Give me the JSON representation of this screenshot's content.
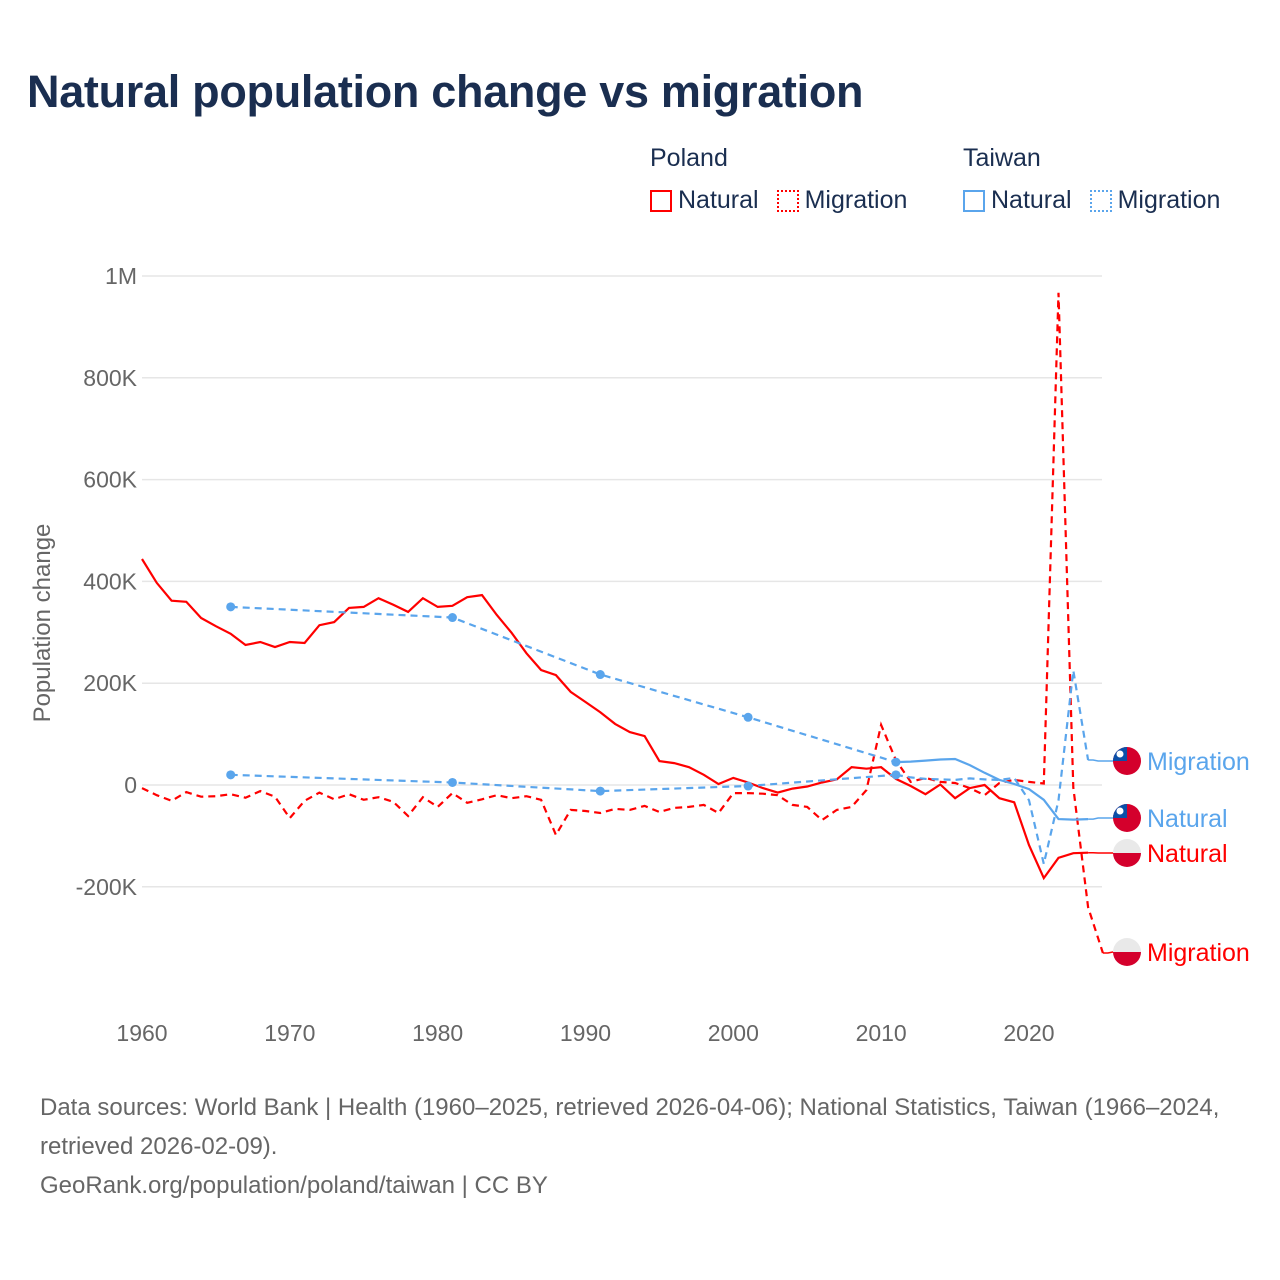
{
  "title": "Natural population change vs migration",
  "legend": {
    "groups": [
      {
        "name": "Poland",
        "color": "#ff0000",
        "items": [
          "Natural",
          "Migration"
        ]
      },
      {
        "name": "Taiwan",
        "color": "#5aa5ec",
        "items": [
          "Natural",
          "Migration"
        ]
      }
    ]
  },
  "footer": {
    "sources": "Data sources: World Bank | Health (1960–2025, retrieved 2026-04-06); National Statistics, Taiwan (1966–2024, retrieved 2026-02-09).",
    "credit": "GeoRank.org/population/poland/taiwan | CC BY"
  },
  "chart_data": {
    "type": "line",
    "title": "Natural population change vs migration",
    "ylabel": "Population change",
    "xlabel": "",
    "xlim": [
      1960,
      2025
    ],
    "ylim": [
      -400000,
      1000000
    ],
    "x_ticks": [
      1960,
      1970,
      1980,
      1990,
      2000,
      2010,
      2020
    ],
    "y_ticks": [
      {
        "value": 1000000,
        "label": "1M"
      },
      {
        "value": 800000,
        "label": "800K"
      },
      {
        "value": 600000,
        "label": "600K"
      },
      {
        "value": 400000,
        "label": "400K"
      },
      {
        "value": 200000,
        "label": "200K"
      },
      {
        "value": 0,
        "label": "0"
      },
      {
        "value": -200000,
        "label": "-200K"
      }
    ],
    "grid": true,
    "legend_position": "top-right",
    "series": [
      {
        "name": "Poland Natural",
        "country": "Poland",
        "label": "Natural",
        "color": "#ff0000",
        "style": "solid",
        "x": [
          1960,
          1961,
          1962,
          1963,
          1964,
          1965,
          1966,
          1967,
          1968,
          1969,
          1970,
          1971,
          1972,
          1973,
          1974,
          1975,
          1976,
          1977,
          1978,
          1979,
          1980,
          1981,
          1982,
          1983,
          1984,
          1985,
          1986,
          1987,
          1988,
          1989,
          1990,
          1991,
          1992,
          1993,
          1994,
          1995,
          1996,
          1997,
          1998,
          1999,
          2000,
          2001,
          2002,
          2003,
          2004,
          2005,
          2006,
          2007,
          2008,
          2009,
          2010,
          2011,
          2012,
          2013,
          2014,
          2015,
          2016,
          2017,
          2018,
          2019,
          2020,
          2021,
          2022,
          2023,
          2024
        ],
        "y": [
          444000,
          397000,
          362000,
          360000,
          328000,
          312000,
          297000,
          275000,
          281000,
          271000,
          281000,
          279000,
          314000,
          320000,
          348000,
          350000,
          367000,
          354000,
          340000,
          367000,
          350000,
          352000,
          369000,
          373000,
          334000,
          299000,
          259000,
          226000,
          216000,
          183000,
          163000,
          143000,
          120000,
          104000,
          96000,
          47000,
          43000,
          35000,
          20000,
          2000,
          14000,
          5000,
          -6000,
          -15000,
          -7000,
          -3000,
          5000,
          11000,
          35000,
          32000,
          35000,
          12000,
          -2000,
          -18000,
          1000,
          -26000,
          -6000,
          0,
          -26000,
          -34000,
          -118000,
          -183000,
          -143000,
          -134000,
          -133000
        ]
      },
      {
        "name": "Poland Migration",
        "country": "Poland",
        "label": "Migration",
        "color": "#ff0000",
        "style": "dashed",
        "x": [
          1960,
          1961,
          1962,
          1963,
          1964,
          1965,
          1966,
          1967,
          1968,
          1969,
          1970,
          1971,
          1972,
          1973,
          1974,
          1975,
          1976,
          1977,
          1978,
          1979,
          1980,
          1981,
          1982,
          1983,
          1984,
          1985,
          1986,
          1987,
          1988,
          1989,
          1990,
          1991,
          1992,
          1993,
          1994,
          1995,
          1996,
          1997,
          1998,
          1999,
          2000,
          2001,
          2002,
          2003,
          2004,
          2005,
          2006,
          2007,
          2008,
          2009,
          2010,
          2011,
          2012,
          2013,
          2014,
          2015,
          2016,
          2017,
          2018,
          2019,
          2020,
          2021,
          2022,
          2023,
          2024,
          2025
        ],
        "y": [
          -6000,
          -20000,
          -31000,
          -14000,
          -23000,
          -22000,
          -18000,
          -25000,
          -12000,
          -23000,
          -65000,
          -31000,
          -15000,
          -28000,
          -18000,
          -29000,
          -24000,
          -33000,
          -61000,
          -24000,
          -43000,
          -16000,
          -35000,
          -28000,
          -20000,
          -26000,
          -22000,
          -29000,
          -98000,
          -49000,
          -51000,
          -55000,
          -47000,
          -49000,
          -41000,
          -53000,
          -45000,
          -43000,
          -39000,
          -55000,
          -16000,
          -16000,
          -17000,
          -20000,
          -39000,
          -43000,
          -69000,
          -49000,
          -43000,
          -10000,
          118000,
          49000,
          6000,
          14000,
          6000,
          4000,
          -6000,
          -20000,
          4000,
          10000,
          6000,
          3000,
          967000,
          -5000,
          -240000,
          -330000
        ]
      },
      {
        "name": "Taiwan Natural",
        "country": "Taiwan",
        "label": "Natural",
        "color": "#5aa5ec",
        "style": "solid",
        "x": [
          1966,
          1981,
          1991,
          2001,
          2011,
          2012,
          2013,
          2014,
          2015,
          2016,
          2017,
          2018,
          2019,
          2020,
          2021,
          2022,
          2023,
          2024
        ],
        "y": [
          350000,
          329000,
          217000,
          133000,
          45000,
          46000,
          48000,
          50000,
          51000,
          39000,
          24000,
          10000,
          2000,
          -8000,
          -29000,
          -67000,
          -68000,
          -67000
        ],
        "sparse_years": [
          1966,
          1981,
          1991,
          2001,
          2011
        ]
      },
      {
        "name": "Taiwan Migration",
        "country": "Taiwan",
        "label": "Migration",
        "color": "#5aa5ec",
        "style": "dashed",
        "x": [
          1966,
          1981,
          1991,
          2001,
          2011,
          2012,
          2013,
          2014,
          2015,
          2016,
          2017,
          2018,
          2019,
          2020,
          2021,
          2022,
          2023,
          2024
        ],
        "y": [
          20000,
          5000,
          -12000,
          -2000,
          20000,
          15000,
          12000,
          11000,
          10000,
          13000,
          11000,
          10000,
          14000,
          -30000,
          -155000,
          -30000,
          225000,
          49000
        ],
        "sparse_years": [
          1966,
          1981,
          1991,
          2001,
          2011
        ]
      }
    ]
  }
}
